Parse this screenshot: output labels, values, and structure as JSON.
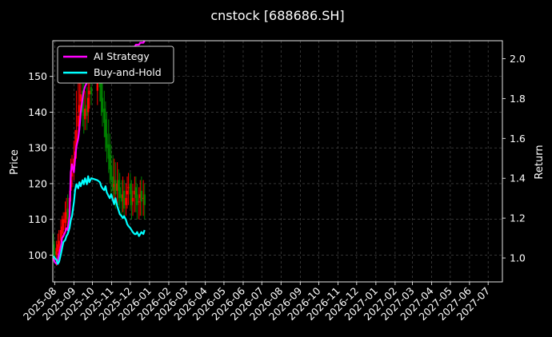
{
  "chart_data": {
    "type": "line",
    "title": "cnstock [688686.SH]",
    "ylabel": "Price",
    "y2label": "Return",
    "ylim": [
      92.5,
      160
    ],
    "y2lim": [
      0.88,
      2.09
    ],
    "yticks": [
      100,
      110,
      120,
      130,
      140,
      150
    ],
    "y2ticks": [
      1.0,
      1.2,
      1.4,
      1.6,
      1.8,
      2.0
    ],
    "y2tick_labels": [
      "1.0",
      "1.2",
      "1.4",
      "1.6",
      "1.8",
      "2.0"
    ],
    "xlim": [
      "2025-07-29",
      "2027-07-24"
    ],
    "xtick_labels": [
      "2025-08",
      "2025-09",
      "2025-10",
      "2025-11",
      "2025-12",
      "2026-01",
      "2026-02",
      "2026-03",
      "2026-04",
      "2026-05",
      "2026-06",
      "2026-07",
      "2026-08",
      "2026-09",
      "2026-10",
      "2026-11",
      "2026-12",
      "2027-01",
      "2027-02",
      "2027-03",
      "2027-04",
      "2027-05",
      "2027-06",
      "2027-07"
    ],
    "xtick_dates": [
      "2025-08-01",
      "2025-09-01",
      "2025-10-01",
      "2025-11-01",
      "2025-12-01",
      "2026-01-01",
      "2026-02-01",
      "2026-03-01",
      "2026-04-01",
      "2026-05-01",
      "2026-06-01",
      "2026-07-01",
      "2026-08-01",
      "2026-09-01",
      "2026-10-01",
      "2026-11-01",
      "2026-12-01",
      "2027-01-01",
      "2027-02-01",
      "2027-03-01",
      "2027-04-01",
      "2027-05-01",
      "2027-06-01",
      "2027-07-01"
    ],
    "grid": true,
    "legend_position": "top-left",
    "candles": {
      "up_color": "#ff0000",
      "down_color": "#008000",
      "dates": [
        "2025-07-30",
        "2025-08-01",
        "2025-08-04",
        "2025-08-06",
        "2025-08-08",
        "2025-08-11",
        "2025-08-13",
        "2025-08-15",
        "2025-08-18",
        "2025-08-20",
        "2025-08-22",
        "2025-08-25",
        "2025-08-27",
        "2025-08-29",
        "2025-09-01",
        "2025-09-03",
        "2025-09-05",
        "2025-09-08",
        "2025-09-10",
        "2025-09-12",
        "2025-09-15",
        "2025-09-17",
        "2025-09-19",
        "2025-09-22",
        "2025-09-24",
        "2025-09-26",
        "2025-09-29",
        "2025-10-09",
        "2025-10-13",
        "2025-10-15",
        "2025-10-17",
        "2025-10-20",
        "2025-10-22",
        "2025-10-24",
        "2025-10-27",
        "2025-10-29",
        "2025-10-31",
        "2025-11-03",
        "2025-11-05",
        "2025-11-07",
        "2025-11-10",
        "2025-11-12",
        "2025-11-14",
        "2025-11-17",
        "2025-11-19",
        "2025-11-21",
        "2025-11-24",
        "2025-11-26",
        "2025-11-28",
        "2025-12-01",
        "2025-12-03",
        "2025-12-05",
        "2025-12-08",
        "2025-12-10",
        "2025-12-12",
        "2025-12-15",
        "2025-12-17",
        "2025-12-19",
        "2025-12-22",
        "2025-12-24"
      ],
      "open": [
        103,
        101,
        100,
        101,
        102,
        104,
        106,
        107,
        109,
        111,
        113,
        112,
        118,
        122,
        124,
        128,
        130,
        136,
        140,
        143,
        146,
        141,
        138,
        142,
        140,
        145,
        147,
        146,
        150,
        148,
        144,
        141,
        138,
        134,
        131,
        128,
        125,
        122,
        119,
        121,
        118,
        121,
        119,
        117,
        116,
        118,
        114,
        117,
        119,
        120,
        118,
        115,
        117,
        119,
        117,
        115,
        116,
        118,
        116,
        117
      ],
      "close": [
        101,
        99,
        102,
        103,
        104,
        107,
        108,
        110,
        112,
        112,
        110,
        116,
        121,
        123,
        127,
        129,
        135,
        139,
        142,
        145,
        140,
        139,
        141,
        139,
        144,
        146,
        145,
        149,
        147,
        143,
        140,
        137,
        133,
        130,
        127,
        124,
        121,
        118,
        120,
        117,
        120,
        118,
        116,
        115,
        117,
        113,
        116,
        118,
        119,
        117,
        114,
        116,
        118,
        116,
        114,
        115,
        117,
        115,
        116,
        114
      ],
      "high": [
        106,
        104,
        104,
        106,
        107,
        110,
        111,
        112,
        115,
        116,
        117,
        118,
        127,
        128,
        132,
        135,
        146,
        152,
        153,
        156,
        152,
        148,
        146,
        147,
        149,
        152,
        153,
        154,
        155,
        152,
        149,
        146,
        143,
        140,
        138,
        134,
        131,
        128,
        127,
        126,
        126,
        124,
        123,
        121,
        122,
        121,
        120,
        122,
        123,
        123,
        121,
        120,
        122,
        122,
        120,
        119,
        121,
        122,
        121,
        120
      ],
      "low": [
        100,
        98,
        97,
        98,
        100,
        102,
        104,
        105,
        107,
        108,
        107,
        109,
        115,
        119,
        121,
        125,
        127,
        132,
        137,
        139,
        136,
        134,
        135,
        135,
        137,
        141,
        142,
        142,
        143,
        139,
        136,
        133,
        129,
        126,
        123,
        120,
        117,
        115,
        114,
        113,
        114,
        114,
        113,
        111,
        112,
        110,
        111,
        113,
        114,
        113,
        110,
        111,
        112,
        112,
        110,
        110,
        111,
        111,
        111,
        110
      ]
    },
    "series": [
      {
        "name": "AI Strategy",
        "color": "#ff00ff",
        "axis": "right",
        "x": [
          "2025-07-30",
          "2025-08-01",
          "2025-08-04",
          "2025-08-06",
          "2025-08-08",
          "2025-08-11",
          "2025-08-13",
          "2025-08-15",
          "2025-08-18",
          "2025-08-20",
          "2025-08-22",
          "2025-08-25",
          "2025-08-27",
          "2025-08-29",
          "2025-09-01",
          "2025-09-03",
          "2025-09-05",
          "2025-09-08",
          "2025-09-10",
          "2025-09-12",
          "2025-09-15",
          "2025-09-17",
          "2025-09-19",
          "2025-09-22",
          "2025-09-24",
          "2025-09-26",
          "2025-09-29",
          "2025-10-09",
          "2025-10-13",
          "2025-10-15",
          "2025-10-17",
          "2025-10-20",
          "2025-10-22",
          "2025-10-24",
          "2025-10-27",
          "2025-10-29",
          "2025-10-31",
          "2025-11-03",
          "2025-11-05",
          "2025-11-07",
          "2025-11-10",
          "2025-11-12",
          "2025-11-14",
          "2025-11-17",
          "2025-11-19",
          "2025-11-21",
          "2025-11-24",
          "2025-11-26",
          "2025-11-28",
          "2025-12-01",
          "2025-12-03",
          "2025-12-05",
          "2025-12-08",
          "2025-12-10",
          "2025-12-12",
          "2025-12-15",
          "2025-12-17",
          "2025-12-19",
          "2025-12-22",
          "2025-12-24"
        ],
        "values": [
          1.0,
          0.98,
          0.97,
          0.99,
          1.02,
          1.06,
          1.1,
          1.11,
          1.13,
          1.15,
          1.14,
          1.21,
          1.43,
          1.47,
          1.43,
          1.5,
          1.56,
          1.6,
          1.65,
          1.73,
          1.8,
          1.84,
          1.86,
          1.88,
          1.9,
          1.9,
          1.92,
          1.93,
          1.95,
          1.95,
          1.96,
          1.96,
          1.97,
          1.97,
          1.98,
          1.98,
          1.99,
          1.99,
          2.0,
          2.0,
          2.01,
          2.01,
          2.02,
          2.02,
          2.03,
          2.03,
          2.04,
          2.04,
          2.05,
          2.05,
          2.05,
          2.06,
          2.06,
          2.07,
          2.07,
          2.07,
          2.08,
          2.08,
          2.08,
          2.09
        ]
      },
      {
        "name": "Buy-and-Hold",
        "color": "#00ffff",
        "axis": "right",
        "x": [
          "2025-07-30",
          "2025-08-01",
          "2025-08-04",
          "2025-08-06",
          "2025-08-08",
          "2025-08-11",
          "2025-08-13",
          "2025-08-15",
          "2025-08-18",
          "2025-08-20",
          "2025-08-22",
          "2025-08-25",
          "2025-08-27",
          "2025-08-29",
          "2025-09-01",
          "2025-09-03",
          "2025-09-05",
          "2025-09-08",
          "2025-09-10",
          "2025-09-12",
          "2025-09-15",
          "2025-09-17",
          "2025-09-19",
          "2025-09-22",
          "2025-09-24",
          "2025-09-26",
          "2025-09-29",
          "2025-10-09",
          "2025-10-13",
          "2025-10-15",
          "2025-10-17",
          "2025-10-20",
          "2025-10-22",
          "2025-10-24",
          "2025-10-27",
          "2025-10-29",
          "2025-10-31",
          "2025-11-03",
          "2025-11-05",
          "2025-11-07",
          "2025-11-10",
          "2025-11-12",
          "2025-11-14",
          "2025-11-17",
          "2025-11-19",
          "2025-11-21",
          "2025-11-24",
          "2025-11-26",
          "2025-11-28",
          "2025-12-01",
          "2025-12-03",
          "2025-12-05",
          "2025-12-08",
          "2025-12-10",
          "2025-12-12",
          "2025-12-15",
          "2025-12-17",
          "2025-12-19",
          "2025-12-22",
          "2025-12-24"
        ],
        "values": [
          1.01,
          1.0,
          0.99,
          0.97,
          0.98,
          1.02,
          1.05,
          1.08,
          1.09,
          1.11,
          1.12,
          1.15,
          1.19,
          1.21,
          1.28,
          1.34,
          1.37,
          1.35,
          1.38,
          1.36,
          1.39,
          1.37,
          1.4,
          1.37,
          1.41,
          1.38,
          1.4,
          1.39,
          1.38,
          1.36,
          1.35,
          1.34,
          1.36,
          1.33,
          1.31,
          1.3,
          1.32,
          1.29,
          1.27,
          1.3,
          1.26,
          1.24,
          1.22,
          1.21,
          1.2,
          1.21,
          1.19,
          1.17,
          1.16,
          1.15,
          1.14,
          1.13,
          1.12,
          1.12,
          1.13,
          1.11,
          1.12,
          1.13,
          1.12,
          1.14
        ]
      }
    ]
  }
}
